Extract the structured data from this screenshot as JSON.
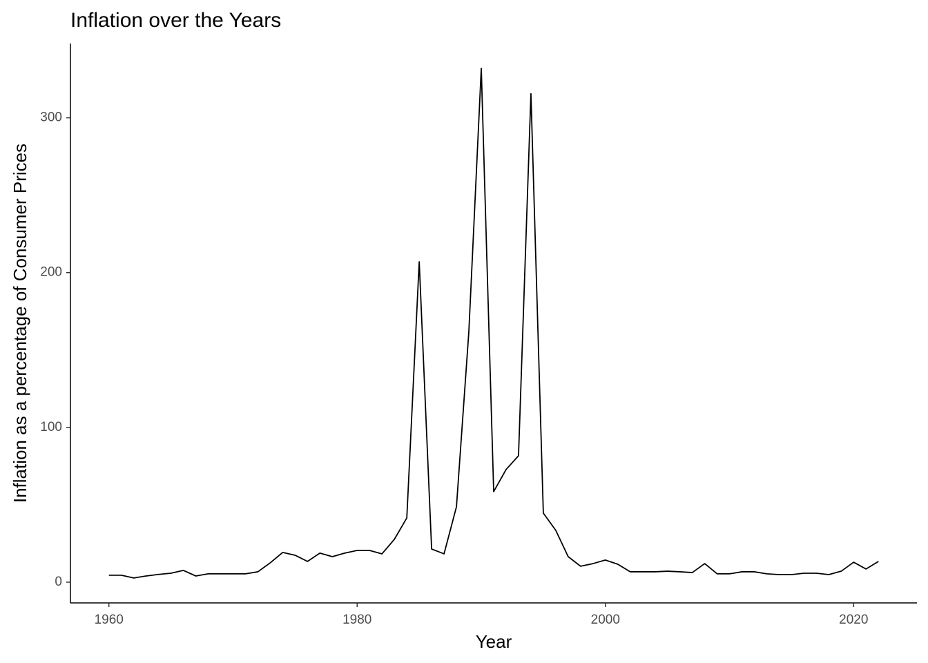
{
  "chart_data": {
    "type": "line",
    "title": "Inflation over the Years",
    "x_label": "Year",
    "y_label": "Inflation as a percentage of Consumer Prices",
    "x": [
      1960,
      1961,
      1962,
      1963,
      1964,
      1965,
      1966,
      1967,
      1968,
      1969,
      1970,
      1971,
      1972,
      1973,
      1974,
      1975,
      1976,
      1977,
      1978,
      1979,
      1980,
      1981,
      1982,
      1983,
      1984,
      1985,
      1986,
      1987,
      1988,
      1989,
      1990,
      1991,
      1992,
      1993,
      1994,
      1995,
      1996,
      1997,
      1998,
      1999,
      2000,
      2001,
      2002,
      2003,
      2004,
      2005,
      2006,
      2007,
      2008,
      2009,
      2010,
      2011,
      2012,
      2013,
      2014,
      2015,
      2016,
      2017,
      2018,
      2019,
      2020,
      2021,
      2022
    ],
    "series": [
      {
        "name": "Inflation",
        "color": "#000000",
        "values": [
          4.5,
          4.5,
          2.7,
          4,
          5,
          5.8,
          7.6,
          4,
          5.4,
          5.4,
          5.4,
          5.4,
          6.7,
          12.5,
          19.2,
          17.4,
          13.4,
          18.8,
          16.5,
          18.8,
          20.5,
          20.5,
          18.3,
          27.7,
          41.5,
          207,
          21.4,
          18.3,
          48.7,
          162,
          332,
          58.5,
          72.8,
          81.7,
          315.6,
          44.6,
          33.5,
          16.5,
          10.3,
          12,
          14.3,
          11.6,
          6.7,
          6.7,
          6.7,
          7.1,
          6.7,
          6.2,
          12,
          5.4,
          5.4,
          6.7,
          6.7,
          5.4,
          4.9,
          4.9,
          5.8,
          5.8,
          4.9,
          7.1,
          12.9,
          8.5,
          13.4
        ]
      }
    ],
    "xlim": [
      1956.9,
      2025.1
    ],
    "xticks": [
      1960,
      1980,
      2000,
      2020
    ],
    "ylim": [
      -13.4,
      348
    ],
    "yticks": [
      0,
      100,
      200,
      300
    ]
  }
}
